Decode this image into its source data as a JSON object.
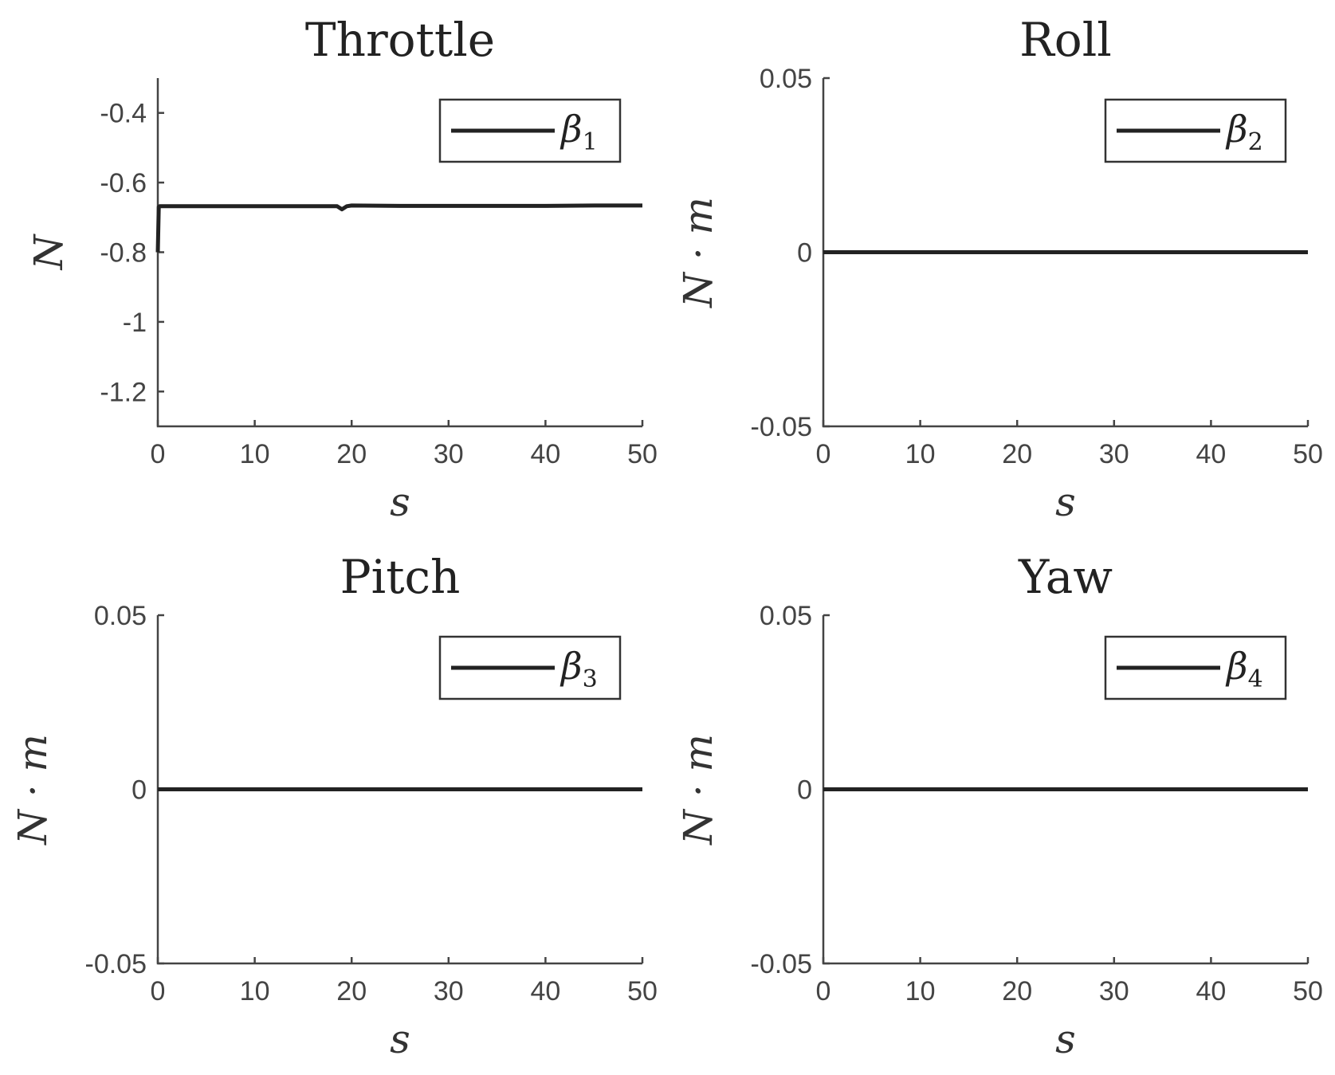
{
  "chart_data": [
    {
      "type": "line",
      "title": "Throttle",
      "xlabel": "s",
      "ylabel": "N",
      "xlim": [
        0,
        50
      ],
      "ylim": [
        -1.3,
        -0.3
      ],
      "xticks": [
        "0",
        "10",
        "20",
        "30",
        "40",
        "50"
      ],
      "yticks": [
        "-0.4",
        "-0.6",
        "-0.8",
        "-1",
        "-1.2"
      ],
      "ytick_values": [
        -0.4,
        -0.6,
        -0.8,
        -1.0,
        -1.2
      ],
      "legend_position": "top-right",
      "series": [
        {
          "name": "β",
          "name_sub": "1",
          "x": [
            0,
            0.1,
            0.2,
            1,
            5,
            10,
            15,
            18.5,
            19,
            19.5,
            20,
            25,
            30,
            35,
            40,
            45,
            50
          ],
          "y": [
            -0.8,
            -0.67,
            -0.668,
            -0.668,
            -0.668,
            -0.668,
            -0.668,
            -0.668,
            -0.677,
            -0.668,
            -0.666,
            -0.667,
            -0.667,
            -0.667,
            -0.667,
            -0.666,
            -0.666
          ]
        }
      ]
    },
    {
      "type": "line",
      "title": "Roll",
      "xlabel": "s",
      "ylabel": "N · m",
      "xlim": [
        0,
        50
      ],
      "ylim": [
        -0.05,
        0.05
      ],
      "xticks": [
        "0",
        "10",
        "20",
        "30",
        "40",
        "50"
      ],
      "yticks": [
        "0.05",
        "0",
        "-0.05"
      ],
      "ytick_values": [
        0.05,
        0,
        -0.05
      ],
      "legend_position": "top-right",
      "series": [
        {
          "name": "β",
          "name_sub": "2",
          "x": [
            0,
            50
          ],
          "y": [
            0,
            0
          ]
        }
      ]
    },
    {
      "type": "line",
      "title": "Pitch",
      "xlabel": "s",
      "ylabel": "N · m",
      "xlim": [
        0,
        50
      ],
      "ylim": [
        -0.05,
        0.05
      ],
      "xticks": [
        "0",
        "10",
        "20",
        "30",
        "40",
        "50"
      ],
      "yticks": [
        "0.05",
        "0",
        "-0.05"
      ],
      "ytick_values": [
        0.05,
        0,
        -0.05
      ],
      "legend_position": "top-right",
      "series": [
        {
          "name": "β",
          "name_sub": "3",
          "x": [
            0,
            50
          ],
          "y": [
            0,
            0
          ]
        }
      ]
    },
    {
      "type": "line",
      "title": "Yaw",
      "xlabel": "s",
      "ylabel": "N · m",
      "xlim": [
        0,
        50
      ],
      "ylim": [
        -0.05,
        0.05
      ],
      "xticks": [
        "0",
        "10",
        "20",
        "30",
        "40",
        "50"
      ],
      "yticks": [
        "0.05",
        "0",
        "-0.05"
      ],
      "ytick_values": [
        0.05,
        0,
        -0.05
      ],
      "legend_position": "top-right",
      "series": [
        {
          "name": "β",
          "name_sub": "4",
          "x": [
            0,
            50
          ],
          "y": [
            0,
            0
          ]
        }
      ]
    }
  ]
}
